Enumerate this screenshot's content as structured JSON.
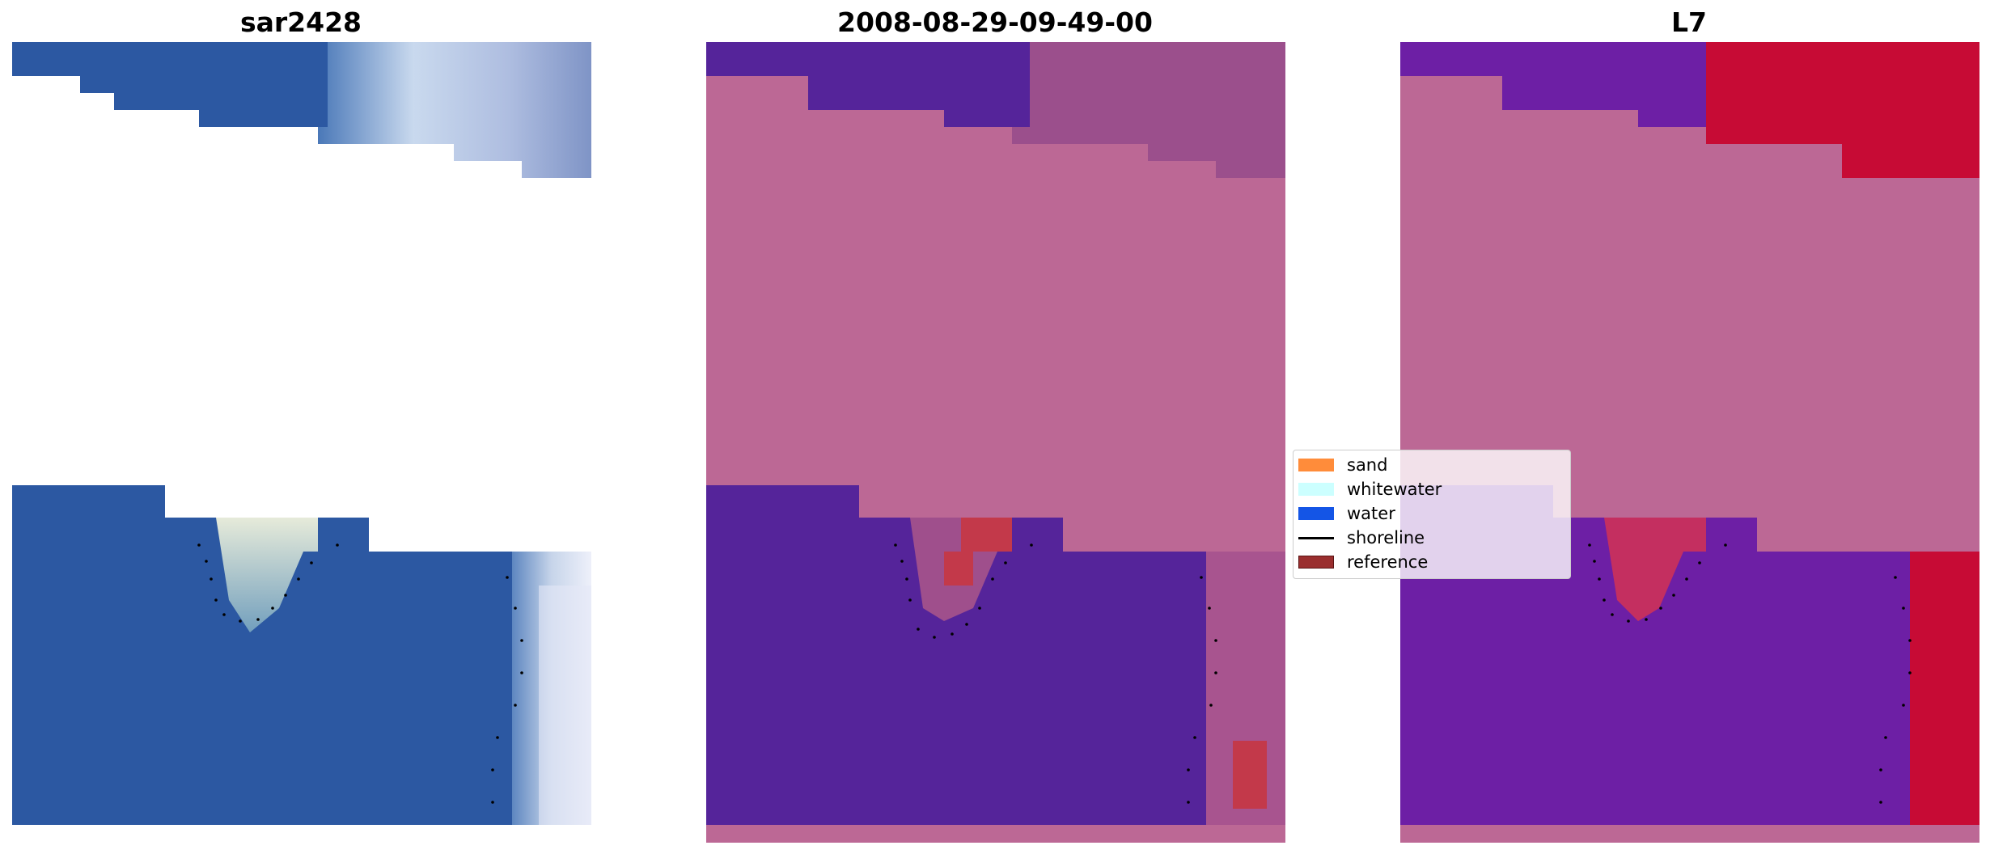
{
  "panels": [
    {
      "title": "sar2428"
    },
    {
      "title": "2008-08-29-09-49-00"
    },
    {
      "title": "L7"
    }
  ],
  "legend": {
    "items": [
      {
        "label": "sand",
        "color": "#ff8c3a",
        "kind": "patch"
      },
      {
        "label": "whitewater",
        "color": "#ccffff",
        "kind": "patch"
      },
      {
        "label": "water",
        "color": "#1455e6",
        "kind": "patch"
      },
      {
        "label": "shoreline",
        "color": "#000000",
        "kind": "line"
      },
      {
        "label": "reference",
        "color": "#9a2e2e",
        "kind": "patch"
      }
    ]
  },
  "colors": {
    "water_blue": "#2c58a2",
    "class_purple": "#55249a",
    "class_pink": "#bc6895",
    "class_red": "#c3394a",
    "l7_purple": "#6d1fa5",
    "l7_red": "#c70b35"
  }
}
